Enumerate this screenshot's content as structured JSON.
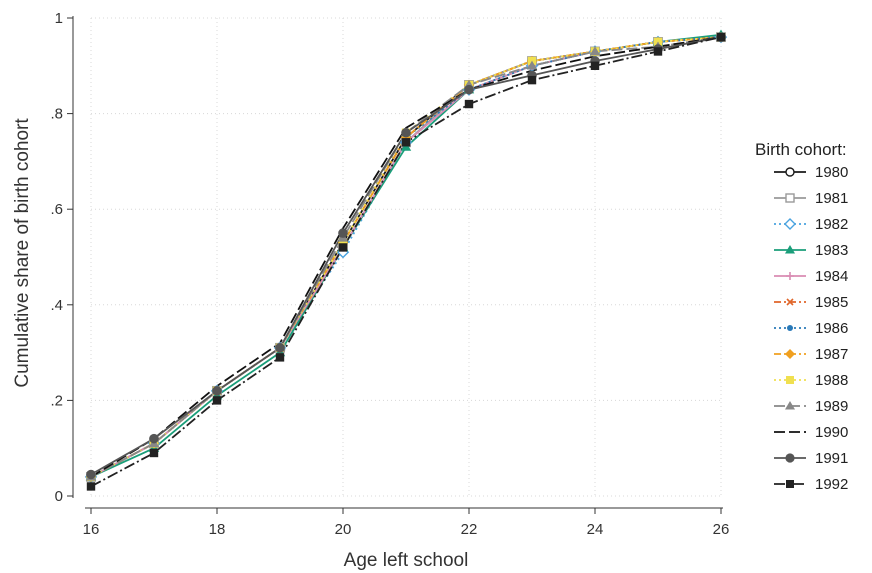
{
  "chart_data": {
    "type": "line",
    "title": "",
    "xlabel": "Age left school",
    "ylabel": "Cumulative share of birth cohort",
    "xlim": [
      16,
      26
    ],
    "ylim": [
      0,
      1
    ],
    "x_ticks": [
      16,
      18,
      20,
      22,
      24,
      26
    ],
    "x_tick_labels": [
      "16",
      "18",
      "20",
      "22",
      "24",
      "26"
    ],
    "y_ticks": [
      0,
      0.2,
      0.4,
      0.6,
      0.8,
      1
    ],
    "y_tick_labels": [
      "0",
      ".2",
      ".4",
      ".6",
      ".8",
      "1"
    ],
    "grid": true,
    "legend_title": "Birth cohort:",
    "legend_position": "right",
    "x": [
      16,
      17,
      18,
      19,
      20,
      21,
      22,
      23,
      24,
      25,
      26
    ],
    "series": [
      {
        "name": "1980",
        "color": "#1a1a1a",
        "marker": "circle-open",
        "dash": "solid",
        "values": [
          0.04,
          0.11,
          0.22,
          0.31,
          0.53,
          0.75,
          0.86,
          0.91,
          0.93,
          0.95,
          0.96
        ]
      },
      {
        "name": "1981",
        "color": "#9a9a9a",
        "marker": "square-open",
        "dash": "solid",
        "values": [
          0.04,
          0.11,
          0.22,
          0.31,
          0.52,
          0.74,
          0.86,
          0.91,
          0.93,
          0.95,
          0.96
        ]
      },
      {
        "name": "1982",
        "color": "#4aa3df",
        "marker": "diamond-open",
        "dash": "dot",
        "values": [
          0.04,
          0.11,
          0.22,
          0.31,
          0.51,
          0.74,
          0.85,
          0.9,
          0.93,
          0.95,
          0.96
        ]
      },
      {
        "name": "1983",
        "color": "#1a9e7a",
        "marker": "triangle",
        "dash": "solid",
        "values": [
          0.04,
          0.1,
          0.21,
          0.3,
          0.52,
          0.73,
          0.85,
          0.9,
          0.93,
          0.95,
          0.965
        ]
      },
      {
        "name": "1984",
        "color": "#d98cb3",
        "marker": "plus",
        "dash": "solid",
        "values": [
          0.04,
          0.11,
          0.22,
          0.31,
          0.52,
          0.74,
          0.85,
          0.9,
          0.93,
          0.95,
          0.96
        ]
      },
      {
        "name": "1985",
        "color": "#e0662a",
        "marker": "x",
        "dash": "dashdot",
        "values": [
          0.04,
          0.11,
          0.22,
          0.31,
          0.53,
          0.75,
          0.86,
          0.91,
          0.93,
          0.95,
          0.96
        ]
      },
      {
        "name": "1986",
        "color": "#2979b8",
        "marker": "dot",
        "dash": "dot",
        "values": [
          0.04,
          0.11,
          0.22,
          0.31,
          0.53,
          0.75,
          0.85,
          0.9,
          0.93,
          0.95,
          0.96
        ]
      },
      {
        "name": "1987",
        "color": "#f0a020",
        "marker": "diamond",
        "dash": "dashdot",
        "values": [
          0.04,
          0.11,
          0.22,
          0.31,
          0.53,
          0.75,
          0.86,
          0.91,
          0.93,
          0.95,
          0.96
        ]
      },
      {
        "name": "1988",
        "color": "#f0e050",
        "marker": "square",
        "dash": "dot",
        "values": [
          0.04,
          0.11,
          0.22,
          0.31,
          0.53,
          0.76,
          0.86,
          0.91,
          0.93,
          0.95,
          0.96
        ]
      },
      {
        "name": "1989",
        "color": "#888888",
        "marker": "triangle",
        "dash": "longdash",
        "values": [
          0.04,
          0.11,
          0.22,
          0.31,
          0.54,
          0.76,
          0.86,
          0.9,
          0.93,
          0.94,
          0.96
        ]
      },
      {
        "name": "1990",
        "color": "#111111",
        "marker": "none",
        "dash": "longdash",
        "values": [
          0.04,
          0.12,
          0.23,
          0.32,
          0.56,
          0.77,
          0.85,
          0.89,
          0.92,
          0.94,
          0.96
        ]
      },
      {
        "name": "1991",
        "color": "#555555",
        "marker": "circle",
        "dash": "solid",
        "values": [
          0.045,
          0.12,
          0.22,
          0.31,
          0.55,
          0.76,
          0.85,
          0.88,
          0.91,
          0.935,
          0.96
        ]
      },
      {
        "name": "1992",
        "color": "#222222",
        "marker": "square",
        "dash": "longdashdot",
        "values": [
          0.02,
          0.09,
          0.2,
          0.29,
          0.52,
          0.74,
          0.82,
          0.87,
          0.9,
          0.93,
          0.96
        ]
      }
    ]
  }
}
